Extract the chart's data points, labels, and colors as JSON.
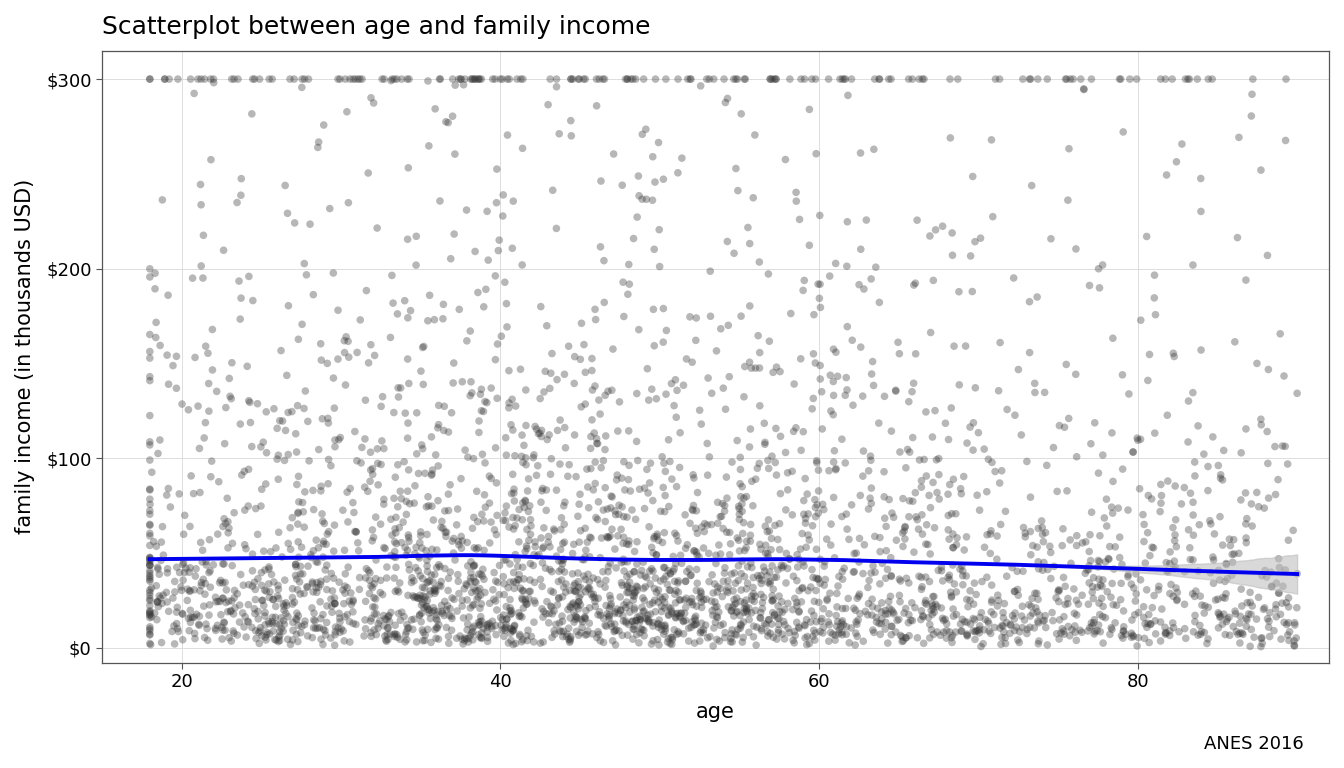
{
  "title": "Scatterplot between age and family income",
  "xlabel": "age",
  "ylabel": "family income (in thousands USD)",
  "caption": "ANES 2016",
  "xlim": [
    15,
    92
  ],
  "ylim": [
    -8,
    315
  ],
  "xticks": [
    20,
    40,
    60,
    80
  ],
  "yticks": [
    0,
    100,
    200,
    300
  ],
  "ytick_labels": [
    "$0",
    "$100",
    "$200",
    "$300"
  ],
  "n_points": 3500,
  "seed": 7,
  "dot_color": "#333333",
  "dot_alpha": 0.35,
  "dot_size": 30,
  "loess_color": "#0000EE",
  "loess_lw": 2.8,
  "ci_color": "#bbbbbb",
  "ci_alpha": 0.55,
  "background_color": "#ffffff",
  "grid_color": "#dddddd",
  "title_fontsize": 18,
  "label_fontsize": 15,
  "tick_fontsize": 13,
  "caption_fontsize": 13
}
